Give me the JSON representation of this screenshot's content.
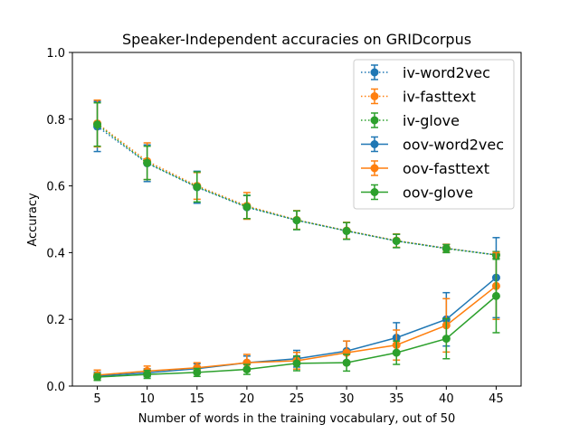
{
  "chart_data": {
    "type": "line",
    "title": "Speaker-Independent accuracies on GRIDcorpus",
    "xlabel": "Number of words in the training vocabulary, out of 50",
    "ylabel": "Accuracy",
    "xlim": [
      2.5,
      47.5
    ],
    "ylim": [
      0.0,
      1.0
    ],
    "x": [
      5,
      10,
      15,
      20,
      25,
      30,
      35,
      40,
      45
    ],
    "xticks": [
      "5",
      "10",
      "15",
      "20",
      "25",
      "30",
      "35",
      "40",
      "45"
    ],
    "yticks": [
      "0.0",
      "0.2",
      "0.4",
      "0.6",
      "0.8",
      "1.0"
    ],
    "grid": false,
    "legend_position": "upper right",
    "series": [
      {
        "name": "iv-word2vec",
        "color": "#1f77b4",
        "linestyle": "dotted",
        "values": [
          0.778,
          0.668,
          0.596,
          0.536,
          0.497,
          0.465,
          0.435,
          0.413,
          0.393
        ],
        "err": [
          0.075,
          0.055,
          0.048,
          0.035,
          0.028,
          0.025,
          0.02,
          0.012,
          0.01
        ]
      },
      {
        "name": "iv-fasttext",
        "color": "#ff7f0e",
        "linestyle": "dotted",
        "values": [
          0.787,
          0.674,
          0.6,
          0.54,
          0.498,
          0.466,
          0.436,
          0.413,
          0.393
        ],
        "err": [
          0.07,
          0.055,
          0.04,
          0.04,
          0.028,
          0.025,
          0.02,
          0.012,
          0.01
        ]
      },
      {
        "name": "iv-glove",
        "color": "#2ca02c",
        "linestyle": "dotted",
        "values": [
          0.784,
          0.669,
          0.597,
          0.537,
          0.497,
          0.465,
          0.435,
          0.412,
          0.393
        ],
        "err": [
          0.065,
          0.05,
          0.045,
          0.035,
          0.028,
          0.025,
          0.02,
          0.012,
          0.01
        ]
      },
      {
        "name": "oov-word2vec",
        "color": "#1f77b4",
        "linestyle": "solid",
        "values": [
          0.03,
          0.04,
          0.052,
          0.07,
          0.082,
          0.105,
          0.145,
          0.2,
          0.325
        ],
        "err": [
          0.012,
          0.012,
          0.015,
          0.02,
          0.025,
          0.03,
          0.045,
          0.08,
          0.12
        ]
      },
      {
        "name": "oov-fasttext",
        "color": "#ff7f0e",
        "linestyle": "solid",
        "values": [
          0.033,
          0.045,
          0.055,
          0.07,
          0.076,
          0.1,
          0.123,
          0.182,
          0.3
        ],
        "err": [
          0.015,
          0.015,
          0.015,
          0.025,
          0.025,
          0.035,
          0.045,
          0.08,
          0.1
        ]
      },
      {
        "name": "oov-glove",
        "color": "#2ca02c",
        "linestyle": "solid",
        "values": [
          0.027,
          0.035,
          0.041,
          0.05,
          0.068,
          0.07,
          0.1,
          0.142,
          0.27
        ],
        "err": [
          0.01,
          0.012,
          0.012,
          0.015,
          0.022,
          0.025,
          0.035,
          0.06,
          0.11
        ]
      }
    ]
  }
}
